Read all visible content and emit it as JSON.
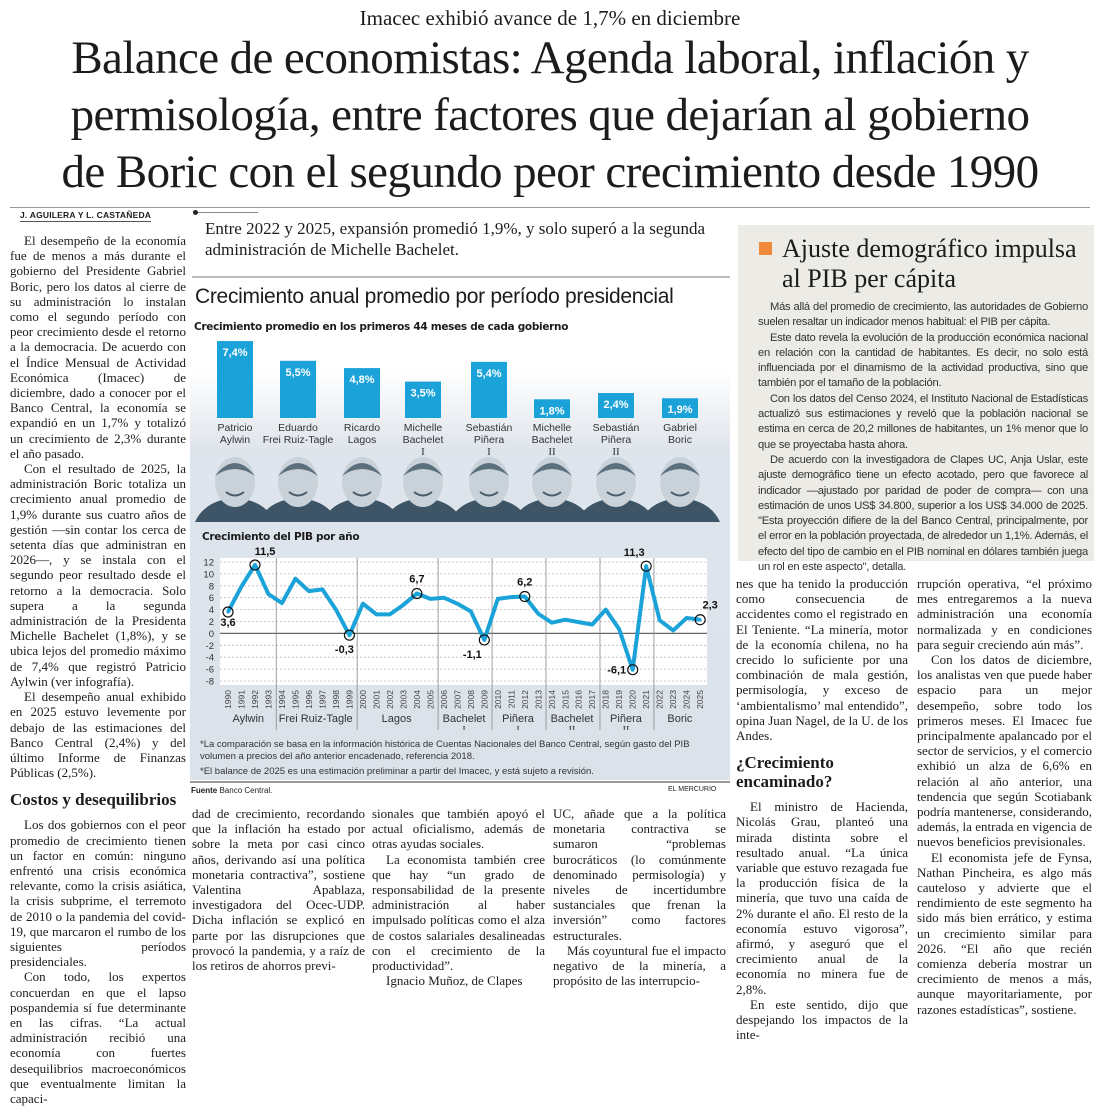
{
  "kicker": "Imacec exhibió avance de 1,7% en diciembre",
  "headline": {
    "line1": "Balance de economistas: Agenda laboral, inflación y",
    "line2": "permisología, entre factores que dejarían al gobierno",
    "line3": "de Boric con el segundo peor crecimiento desde 1990"
  },
  "byline": "J. AGUILERA Y L. CASTAÑEDA",
  "pull_quote": "Entre 2022 y 2025, expansión promedió 1,9%, y solo superó a la segunda administración de Michelle Bachelet.",
  "article": {
    "col1": {
      "p1": "El desempeño de la economía fue de menos a más durante el gobierno del Presidente Gabriel Boric, pero los datos al cierre de su administración lo instalan como el segundo período con peor crecimiento desde el retorno a la democracia. De acuerdo con el Índice Mensual de Actividad Económica (Imacec) de diciembre, dado a conocer por el Banco Central, la economía se expandió en un 1,7% y totalizó un crecimiento de 2,3% durante el año pasado.",
      "p2": "Con el resultado de 2025, la administración Boric totaliza un crecimiento anual promedio de 1,9% durante sus cuatro años de gestión —sin contar los cerca de setenta días que administran en 2026—, y se instala con el segundo peor resultado desde el retorno a la democracia. Solo supera a la segunda administración de la Presidenta Michelle Bachelet (1,8%), y se ubica lejos del promedio máximo de 7,4% que registró Patricio Aylwin (ver infografía).",
      "p3": "El desempeño anual exhibido en 2025 estuvo levemente por debajo de las estimaciones del Banco Central (2,4%) y del último Informe de Finanzas Públicas (2,5%).",
      "subhead": "Costos y desequilibrios",
      "p4": "Los dos gobiernos con el peor promedio de crecimiento tienen un factor en común: ninguno enfrentó una crisis económica relevante, como la crisis asiática, la crisis subprime, el terremoto de 2010 o la pandemia del covid-19, que marcaron el rumbo de los siguientes períodos presidenciales.",
      "p5": "Con todo, los expertos concuerdan en que el lapso pospandemia sí fue determinante en las cifras. “La actual administración recibió una economía con fuertes desequilibrios macroeconómicos que eventualmente limitan la capaci-"
    },
    "col2": {
      "p1": "dad de crecimiento, recordando que la inflación ha estado por sobre la meta por casi cinco años, derivando así una política monetaria contractiva”, sostiene Valentina Apablaza, investigadora del Ocec-UDP. Dicha inflación se explicó en parte por las disrupciones que provocó la pandemia, y a raíz de los retiros de ahorros previ-"
    },
    "col3": {
      "p1": "sionales que también apoyó el actual oficialismo, además de otras ayudas sociales.",
      "p2": "La economista también cree que hay “un grado de responsabilidad de la presente administración al haber impulsado políticas como el alza de costos salariales desalineadas con el crecimiento de la productividad”.",
      "p3": "Ignacio Muñoz, de Clapes"
    },
    "col4": {
      "p1": "UC, añade que a la política monetaria contractiva se sumaron “problemas burocráticos (lo comúnmente denominado permisología) y niveles de incertidumbre sustanciales que frenan la inversión” como factores estructurales.",
      "p2": "Más coyuntural fue el impacto negativo de la minería, a propósito de las interrupcio-"
    },
    "col5": {
      "p1": "nes que ha tenido la producción como consecuencia de accidentes como el registrado en El Teniente. “La minería, motor de la economía chilena, no ha crecido lo suficiente por una combinación de mala gestión, permisología, y exceso de ‘ambientalismo’ mal entendido”, opina Juan Nagel, de la U. de los Andes.",
      "subhead": "¿Crecimiento encaminado?",
      "p2": "El ministro de Hacienda, Nicolás Grau, planteó una mirada distinta sobre el resultado anual. “La única variable que estuvo rezagada fue la producción física de la minería, que tuvo una caída de 2% durante el año. El resto de la economía estuvo vigorosa”, afirmó, y aseguró que el crecimiento anual de la economía no minera fue de 2,8%.",
      "p3": "En este sentido, dijo que despejando los impactos de la inte-"
    },
    "col6": {
      "p1": "rrupción operativa, “el próximo mes entregaremos a la nueva administración una economía normalizada y en condiciones para seguir creciendo aún más”.",
      "p2": "Con los datos de diciembre, los analistas ven que puede haber espacio para un mejor desempeño, sobre todo los primeros meses. El Imacec fue principalmente apalancado por el sector de servicios, y el comercio exhibió un alza de 6,6% en relación al año anterior, una tendencia que según Scotiabank podría mantenerse, considerando, además, la entrada en vigencia de nuevos beneficios previsionales.",
      "p3": "El economista jefe de Fynsa, Nathan Pincheira, es algo más cauteloso y advierte que el rendimiento de este segmento ha sido más bien errático, y estima un crecimiento similar para 2026. “El año que recién comienza debería mostrar un crecimiento de menos a más, aunque mayoritariamente, por razones estadísticas”, sostiene."
    }
  },
  "sidebar_box": {
    "title": "Ajuste demográfico impulsa al PIB per cápita",
    "accent_color": "#f08a3a",
    "p1": "Más allá del promedio de crecimiento, las autoridades de Gobierno suelen resaltar un indicador menos habitual: el PIB per cápita.",
    "p2": "Este dato revela la evolución de la producción económica nacional en relación con la cantidad de habitantes. Es decir, no solo está influenciada por el dinamismo de la actividad productiva, sino que también por el tamaño de la población.",
    "p3": "Con los datos del Censo 2024, el Instituto Nacional de Estadísticas actualizó sus estimaciones y reveló que la población nacional se estima en cerca de 20,2 millones de habitantes, un 1% menor que lo que se proyectaba hasta ahora.",
    "p4": "De acuerdo con la investigadora de Clapes UC, Anja Uslar, este ajuste demográfico tiene un efecto acotado, pero que favorece al indicador —ajustado por paridad de poder de compra— con una estimación de unos US$ 34.800, superior a los US$ 34.000 de 2025. \"Esta proyección difiere de la del Banco Central, principalmente, por el error en la población proyectada, de alrededor un 1,1%. Además, el efecto del tipo de cambio en el PIB nominal en dólares también juega un rol en este aspecto\", detalla."
  },
  "graphic": {
    "title": "Crecimiento anual promedio por período presidencial",
    "notes": [
      "*La comparación se basa en la información histórica de Cuentas Nacionales del Banco Central, según gasto del PIB volumen a precios del año anterior encadenado, referencia 2018.",
      "*El balance de 2025 es una estimación preliminar a partir del Imacec, y está sujeto a revisión."
    ],
    "source_label": "Fuente",
    "source": "Banco Central.",
    "credit": "EL MERCURIO"
  },
  "chart_data": [
    {
      "type": "bar",
      "title": "Crecimiento promedio en los primeros 44 meses de cada gobierno",
      "categories": [
        {
          "name": "Patricio Aylwin",
          "line1": "Patricio",
          "line2": "Aylwin",
          "line3": ""
        },
        {
          "name": "Eduardo Frei Ruiz-Tagle",
          "line1": "Eduardo",
          "line2": "Frei Ruiz-Tagle",
          "line3": ""
        },
        {
          "name": "Ricardo Lagos",
          "line1": "Ricardo",
          "line2": "Lagos",
          "line3": ""
        },
        {
          "name": "Michelle Bachelet I",
          "line1": "Michelle",
          "line2": "Bachelet",
          "line3": "I"
        },
        {
          "name": "Sebastián Piñera I",
          "line1": "Sebastián",
          "line2": "Piñera",
          "line3": "I"
        },
        {
          "name": "Michelle Bachelet II",
          "line1": "Michelle",
          "line2": "Bachelet",
          "line3": "II"
        },
        {
          "name": "Sebastián Piñera II",
          "line1": "Sebastián",
          "line2": "Piñera",
          "line3": "II"
        },
        {
          "name": "Gabriel Boric",
          "line1": "Gabriel",
          "line2": "Boric",
          "line3": ""
        }
      ],
      "values": [
        7.4,
        5.5,
        4.8,
        3.5,
        5.4,
        1.8,
        2.4,
        1.9
      ],
      "value_labels": [
        "7,4%",
        "5,5%",
        "4,8%",
        "3,5%",
        "5,4%",
        "1,8%",
        "2,4%",
        "1,9%"
      ],
      "bar_color": "#1ba3d9"
    },
    {
      "type": "line",
      "title": "Crecimiento del PIB por año",
      "x": [
        1990,
        1991,
        1992,
        1993,
        1994,
        1995,
        1996,
        1997,
        1998,
        1999,
        2000,
        2001,
        2002,
        2003,
        2004,
        2005,
        2006,
        2007,
        2008,
        2009,
        2010,
        2011,
        2012,
        2013,
        2014,
        2015,
        2016,
        2017,
        2018,
        2019,
        2020,
        2021,
        2022,
        2023,
        2024,
        2025
      ],
      "y": [
        3.6,
        7.9,
        11.5,
        6.6,
        5.1,
        9.2,
        7.1,
        7.4,
        4.0,
        -0.3,
        5.0,
        3.2,
        3.2,
        4.8,
        6.7,
        5.8,
        6.0,
        5.0,
        3.7,
        -1.1,
        5.8,
        6.1,
        6.2,
        3.3,
        1.8,
        2.3,
        1.9,
        1.5,
        4.0,
        0.7,
        -6.1,
        11.3,
        2.2,
        0.5,
        2.6,
        2.3
      ],
      "ylim": [
        -8,
        12
      ],
      "yticks": [
        12,
        10,
        8,
        6,
        4,
        2,
        0,
        -2,
        -4,
        -6,
        -8
      ],
      "grid": true,
      "line_color": "#1ba3d9",
      "annotations": [
        {
          "year": 1990,
          "label": "3,6"
        },
        {
          "year": 1992,
          "label": "11,5"
        },
        {
          "year": 1999,
          "label": "-0,3"
        },
        {
          "year": 2004,
          "label": "6,7"
        },
        {
          "year": 2009,
          "label": "-1,1"
        },
        {
          "year": 2012,
          "label": "6,2"
        },
        {
          "year": 2020,
          "label": "-6,1"
        },
        {
          "year": 2021,
          "label": "11,3"
        },
        {
          "year": 2025,
          "label": "2,3"
        }
      ],
      "periods": [
        {
          "label": "Aylwin",
          "sub": "",
          "from": 1990,
          "to": 1993
        },
        {
          "label": "Frei Ruiz-Tagle",
          "sub": "",
          "from": 1994,
          "to": 1999
        },
        {
          "label": "Lagos",
          "sub": "",
          "from": 2000,
          "to": 2005
        },
        {
          "label": "Bachelet",
          "sub": "I",
          "from": 2006,
          "to": 2009
        },
        {
          "label": "Piñera",
          "sub": "I",
          "from": 2010,
          "to": 2013
        },
        {
          "label": "Bachelet",
          "sub": "II",
          "from": 2014,
          "to": 2017
        },
        {
          "label": "Piñera",
          "sub": "II",
          "from": 2018,
          "to": 2021
        },
        {
          "label": "Boric",
          "sub": "",
          "from": 2022,
          "to": 2025
        }
      ]
    }
  ]
}
